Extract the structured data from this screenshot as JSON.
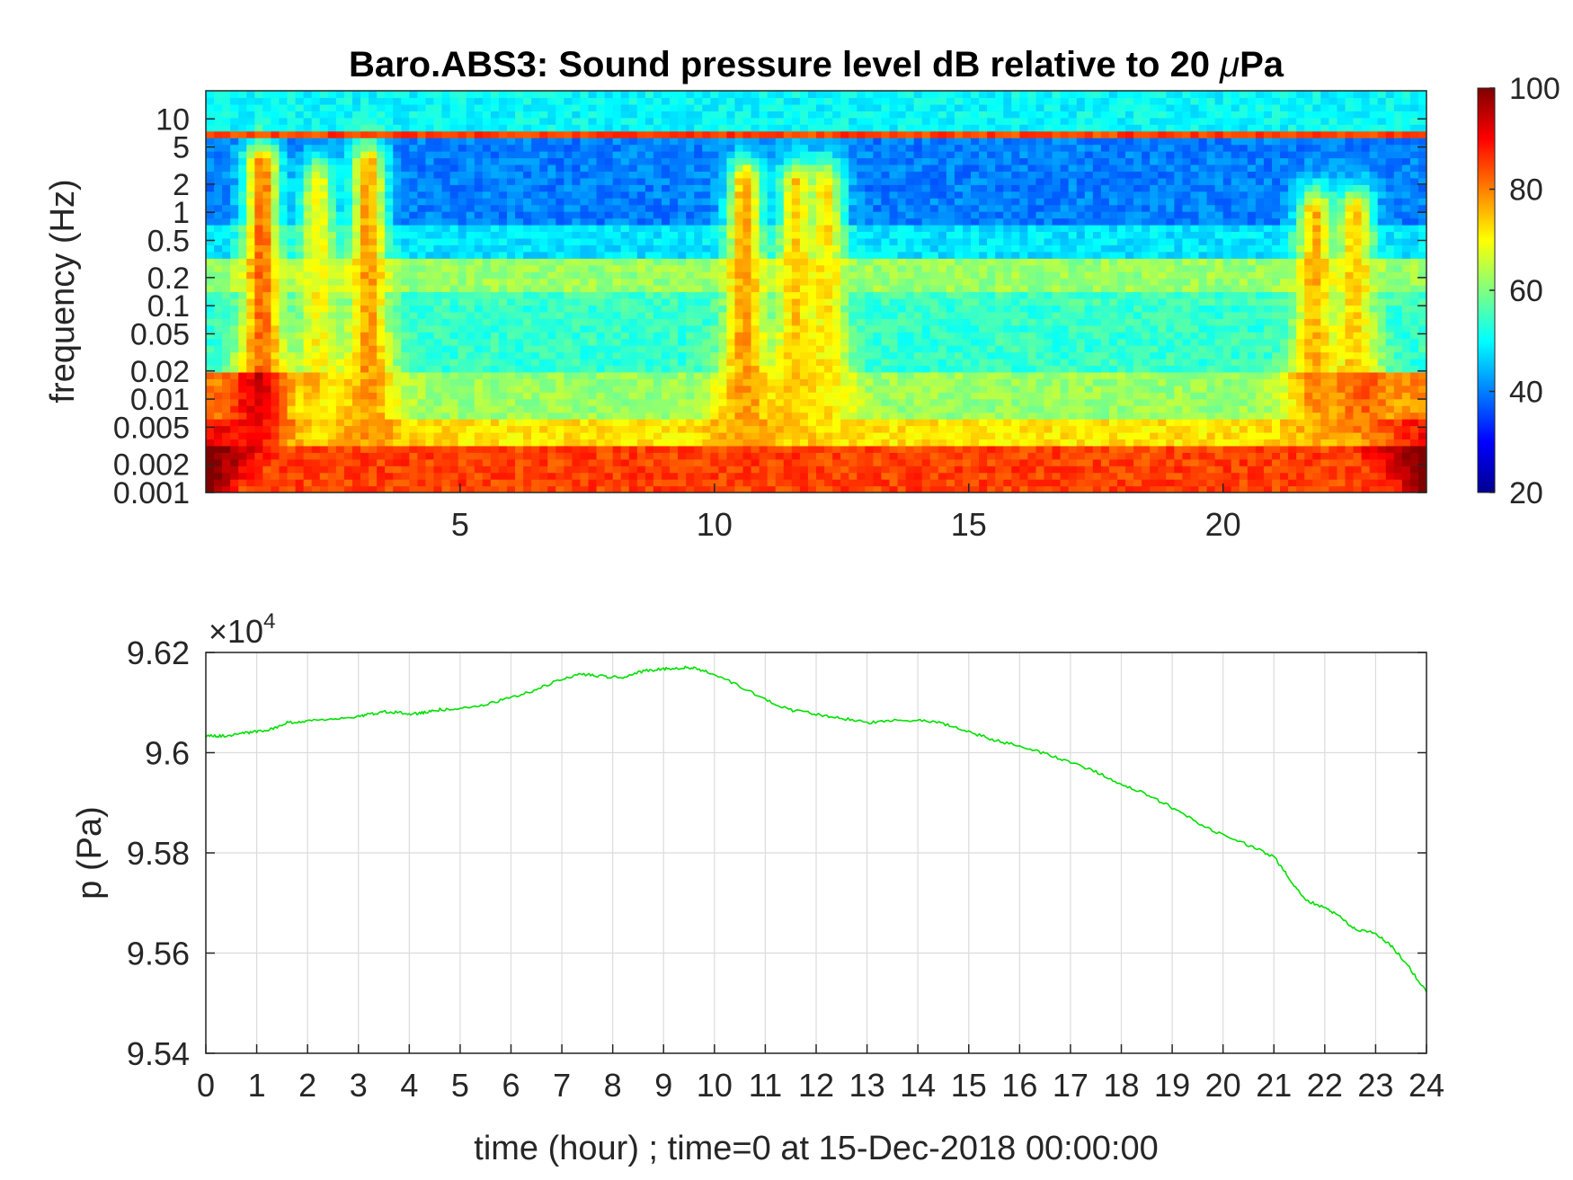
{
  "figure_title_prefix": "Baro.ABS3: Sound pressure level dB relative to 20 ",
  "figure_title_mu": "μ",
  "figure_title_suffix": "Pa",
  "chart_data": [
    {
      "type": "heatmap",
      "title": "Baro.ABS3: Sound pressure level dB relative to 20 μPa",
      "ylabel": "frequency (Hz)",
      "xlabel": "",
      "yscale": "log",
      "xlim": [
        0,
        24
      ],
      "ylim": [
        0.001,
        20
      ],
      "x_ticks": [
        5,
        10,
        15,
        20
      ],
      "x_tick_labels": [
        "5",
        "10",
        "15",
        "20"
      ],
      "y_ticks": [
        0.001,
        0.002,
        0.005,
        0.01,
        0.02,
        0.05,
        0.1,
        0.2,
        0.5,
        1,
        2,
        5,
        10
      ],
      "y_tick_labels": [
        "0.001",
        "0.002",
        "0.005",
        "0.01",
        "0.02",
        "0.05",
        "0.1",
        "0.2",
        "0.5",
        "1",
        "2",
        "5",
        "10"
      ],
      "colormap": "jet",
      "colorbar": {
        "range": [
          20,
          100
        ],
        "ticks": [
          20,
          40,
          60,
          80,
          100
        ],
        "tick_labels": [
          "20",
          "40",
          "60",
          "80",
          "100"
        ]
      },
      "bands_db": [
        {
          "f_from": 8,
          "f_to": 20,
          "level": 50
        },
        {
          "f_from": 0.7,
          "f_to": 6,
          "level": 40
        },
        {
          "f_from": 0.35,
          "f_to": 0.7,
          "level": 48
        },
        {
          "f_from": 0.15,
          "f_to": 0.35,
          "level": 62
        },
        {
          "f_from": 0.1,
          "f_to": 0.15,
          "level": 55
        },
        {
          "f_from": 0.02,
          "f_to": 0.1,
          "level": 54
        },
        {
          "f_from": 0.006,
          "f_to": 0.02,
          "level": 62
        },
        {
          "f_from": 0.003,
          "f_to": 0.006,
          "level": 72
        },
        {
          "f_from": 0.001,
          "f_to": 0.003,
          "level": 85
        }
      ],
      "events": [
        {
          "t": 1.1,
          "f_top": 3,
          "level": 82
        },
        {
          "t": 2.2,
          "f_top": 2,
          "level": 70
        },
        {
          "t": 3.2,
          "f_top": 3,
          "level": 78
        },
        {
          "t": 10.6,
          "f_top": 2,
          "level": 78
        },
        {
          "t": 11.6,
          "f_top": 2,
          "level": 74
        },
        {
          "t": 12.2,
          "f_top": 2,
          "level": 72
        },
        {
          "t": 21.8,
          "f_top": 1,
          "level": 76
        },
        {
          "t": 22.6,
          "f_top": 1,
          "level": 74
        }
      ]
    },
    {
      "type": "line",
      "title": "",
      "xlabel": "time (hour) ; time=0 at 15-Dec-2018 00:00:00",
      "ylabel": "p (Pa)",
      "exponent_label_prefix": "×10",
      "exponent_label_power": "4",
      "y_multiplier": 10000,
      "xlim": [
        0,
        24
      ],
      "ylim": [
        9.54,
        9.62
      ],
      "x_ticks": [
        0,
        1,
        2,
        3,
        4,
        5,
        6,
        7,
        8,
        9,
        10,
        11,
        12,
        13,
        14,
        15,
        16,
        17,
        18,
        19,
        20,
        21,
        22,
        23,
        24
      ],
      "x_tick_labels": [
        "0",
        "1",
        "2",
        "3",
        "4",
        "5",
        "6",
        "7",
        "8",
        "9",
        "10",
        "11",
        "12",
        "13",
        "14",
        "15",
        "16",
        "17",
        "18",
        "19",
        "20",
        "21",
        "22",
        "23",
        "24"
      ],
      "y_ticks": [
        9.54,
        9.56,
        9.58,
        9.6,
        9.62
      ],
      "y_tick_labels": [
        "9.54",
        "9.56",
        "9.58",
        "9.6",
        "9.62"
      ],
      "grid": true,
      "series": [
        {
          "color": "#00e000",
          "x": [
            0,
            0.3,
            0.7,
            1,
            1.3,
            1.6,
            2,
            2.5,
            3,
            3.3,
            3.6,
            4,
            4.3,
            4.6,
            5,
            5.5,
            6,
            6.5,
            7,
            7.4,
            7.8,
            8.2,
            8.6,
            9,
            9.3,
            9.6,
            10,
            10.5,
            11,
            11.5,
            12,
            12.5,
            13,
            13.5,
            14,
            14.5,
            15,
            15.5,
            16,
            16.5,
            17,
            17.5,
            18,
            18.5,
            19,
            19.5,
            20,
            20.5,
            21,
            21.3,
            21.6,
            22,
            22.3,
            22.6,
            23,
            23.3,
            23.6,
            24
          ],
          "y": [
            9.6033,
            9.6033,
            9.6038,
            9.6042,
            9.6047,
            9.606,
            9.6064,
            9.6068,
            9.6072,
            9.6078,
            9.6082,
            9.6077,
            9.608,
            9.6086,
            9.6087,
            9.6096,
            9.611,
            9.6126,
            9.6147,
            9.6157,
            9.6152,
            9.615,
            9.6163,
            9.6167,
            9.6169,
            9.617,
            9.6155,
            9.6133,
            9.6105,
            9.6085,
            9.6077,
            9.6069,
            9.606,
            9.6064,
            9.6064,
            9.6058,
            9.6042,
            9.6025,
            9.6013,
            9.5998,
            9.5982,
            9.5962,
            9.5937,
            9.5917,
            9.589,
            9.586,
            9.5835,
            9.5815,
            9.5792,
            9.575,
            9.5707,
            9.569,
            9.5672,
            9.5647,
            9.5639,
            9.5615,
            9.558,
            9.5522
          ]
        }
      ]
    }
  ]
}
